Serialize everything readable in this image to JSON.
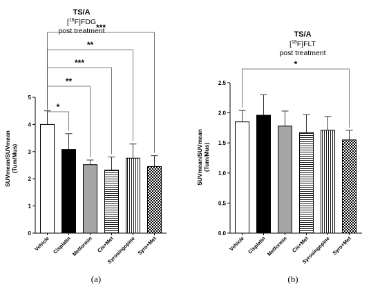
{
  "panels": [
    {
      "title": "TS/A",
      "tracer_pre": "[",
      "tracer_mass": "18",
      "tracer_post": "F]FDG",
      "subtitle": "post treatment",
      "caption": "(a)",
      "ylabel_line1": "SUVmean/SUVmean",
      "ylabel_line2": "(Tum/Mus)",
      "significance": [
        "*",
        "**",
        "***",
        "**",
        "***"
      ]
    },
    {
      "title": "TS/A",
      "tracer_pre": "[",
      "tracer_mass": "18",
      "tracer_post": "F]FLT",
      "subtitle": "post treatment",
      "caption": "(b)",
      "ylabel_line1": "SUVmean/SUVmean",
      "ylabel_line2": "(Tum/Mus)",
      "significance": [
        "*"
      ]
    }
  ],
  "chart_data": [
    {
      "type": "bar",
      "categories": [
        "Vehicle",
        "Cisplatin",
        "Metformin",
        "Cis+Met",
        "Syrosingopine",
        "Syro+Met"
      ],
      "values": [
        4.0,
        3.08,
        2.52,
        2.32,
        2.76,
        2.45
      ],
      "errors": [
        0.5,
        0.58,
        0.17,
        0.48,
        0.52,
        0.4
      ],
      "patterns": [
        "white",
        "black",
        "gray",
        "hlines",
        "vlines",
        "check"
      ],
      "ylim": [
        0,
        5
      ],
      "yticks": [
        0,
        1,
        2,
        3,
        4,
        5
      ],
      "comparisons": [
        {
          "from": "Vehicle",
          "to": "Cisplatin",
          "label": "*"
        },
        {
          "from": "Vehicle",
          "to": "Metformin",
          "label": "**"
        },
        {
          "from": "Vehicle",
          "to": "Cis+Met",
          "label": "***"
        },
        {
          "from": "Vehicle",
          "to": "Syrosingopine",
          "label": "**"
        },
        {
          "from": "Vehicle",
          "to": "Syro+Met",
          "label": "***"
        }
      ]
    },
    {
      "type": "bar",
      "categories": [
        "Vehicle",
        "Cisplatin",
        "Metformin",
        "Cis+Met",
        "Syrosingopine",
        "Syro+Met"
      ],
      "values": [
        1.85,
        1.96,
        1.78,
        1.67,
        1.71,
        1.55
      ],
      "errors": [
        0.19,
        0.34,
        0.25,
        0.3,
        0.23,
        0.16
      ],
      "patterns": [
        "white",
        "black",
        "gray",
        "hlines",
        "vlines",
        "check"
      ],
      "ylim": [
        0,
        2.5
      ],
      "yticks": [
        "0.0",
        "0.5",
        "1.0",
        "1.5",
        "2.0",
        "2.5"
      ],
      "comparisons": [
        {
          "from": "Vehicle",
          "to": "Syro+Met",
          "label": "*"
        }
      ]
    }
  ]
}
